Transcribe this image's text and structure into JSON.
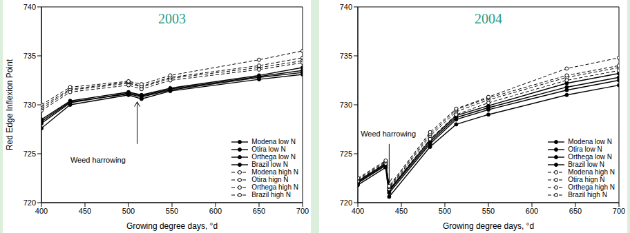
{
  "chart_data": [
    {
      "type": "line",
      "title": "2003",
      "xlabel": "Growing degree days, °d",
      "ylabel": "Red Edge Inflexion Point",
      "x": [
        400,
        433,
        500,
        515,
        548,
        650,
        700
      ],
      "xlim": [
        400,
        700
      ],
      "xticks": [
        400,
        450,
        500,
        550,
        600,
        650,
        700
      ],
      "ylim": [
        720,
        740
      ],
      "yticks": [
        720,
        725,
        730,
        735,
        740
      ],
      "legend": "lower right",
      "series": [
        {
          "name": "Modena low N",
          "color": "#000000",
          "marker": "circle",
          "line_style": "solid",
          "values": [
            728.3,
            730.3,
            731.1,
            730.8,
            731.5,
            732.8,
            733.3
          ]
        },
        {
          "name": "Otira low N",
          "color": "#000000",
          "marker": "circle",
          "line_style": "solid",
          "values": [
            727.6,
            730.0,
            731.0,
            730.6,
            731.4,
            732.6,
            733.1
          ]
        },
        {
          "name": "Orthega low N",
          "color": "#000000",
          "marker": "circle",
          "line_style": "solid",
          "values": [
            728.1,
            730.2,
            731.2,
            730.9,
            731.6,
            732.9,
            733.5
          ]
        },
        {
          "name": "Brazil low N",
          "color": "#000000",
          "marker": "circle",
          "line_style": "solid",
          "values": [
            728.5,
            730.4,
            731.3,
            731.0,
            731.7,
            733.0,
            733.8
          ]
        },
        {
          "name": "Modena high N",
          "color": "#000000",
          "marker": "open_circle",
          "line_style": "dashed",
          "values": [
            729.6,
            731.5,
            732.2,
            731.8,
            732.7,
            733.8,
            734.5
          ]
        },
        {
          "name": "Otira hign N",
          "color": "#000000",
          "marker": "open_circle",
          "line_style": "dashed",
          "values": [
            729.4,
            731.3,
            732.0,
            731.6,
            732.5,
            733.6,
            734.3
          ]
        },
        {
          "name": "Orthega high N",
          "color": "#000000",
          "marker": "open_circle",
          "line_style": "dashed",
          "values": [
            729.8,
            731.6,
            732.3,
            731.9,
            732.8,
            734.0,
            734.8
          ]
        },
        {
          "name": "Brazil high N",
          "color": "#000000",
          "marker": "open_circle",
          "line_style": "dashed",
          "values": [
            730.0,
            731.8,
            732.4,
            732.1,
            733.0,
            734.6,
            735.5
          ]
        }
      ],
      "annotations": [
        {
          "text": "Weed harrowing",
          "x": 510,
          "y": 730.3,
          "tail_y": 726,
          "text_x": 465,
          "text_y": 724.3
        }
      ]
    },
    {
      "type": "line",
      "title": "2004",
      "xlabel": "Growing degree days, °d",
      "x": [
        400,
        432,
        436,
        483,
        513,
        550,
        640,
        700
      ],
      "xlim": [
        400,
        700
      ],
      "xticks": [
        400,
        450,
        500,
        550,
        600,
        650,
        700
      ],
      "ylim": [
        720,
        740
      ],
      "yticks": [
        720,
        725,
        730,
        735,
        740
      ],
      "legend": "lower right",
      "series": [
        {
          "name": "Modena low N",
          "color": "#000000",
          "marker": "circle",
          "line_style": "solid",
          "values": [
            722.0,
            723.8,
            721.0,
            726.0,
            728.5,
            729.5,
            731.5,
            732.5
          ]
        },
        {
          "name": "Otira low N",
          "color": "#000000",
          "marker": "circle",
          "line_style": "solid",
          "values": [
            721.8,
            723.6,
            720.6,
            725.7,
            728.0,
            729.0,
            731.0,
            732.0
          ]
        },
        {
          "name": "Orthega low N",
          "color": "#000000",
          "marker": "circle",
          "line_style": "solid",
          "values": [
            722.1,
            723.9,
            721.2,
            726.2,
            728.7,
            729.7,
            731.8,
            732.8
          ]
        },
        {
          "name": "Brazil low N",
          "color": "#000000",
          "marker": "circle",
          "line_style": "solid",
          "values": [
            722.2,
            724.0,
            721.3,
            726.4,
            728.9,
            729.9,
            732.2,
            733.2
          ]
        },
        {
          "name": "Modena high N",
          "color": "#000000",
          "marker": "open_circle",
          "line_style": "dashed",
          "values": [
            722.3,
            724.1,
            721.5,
            726.8,
            729.3,
            730.5,
            732.8,
            733.8
          ]
        },
        {
          "name": "Otira hign N",
          "color": "#000000",
          "marker": "open_circle",
          "line_style": "dashed",
          "values": [
            722.2,
            724.0,
            721.4,
            726.5,
            729.0,
            730.2,
            732.5,
            733.5
          ]
        },
        {
          "name": "Orthega high N",
          "color": "#000000",
          "marker": "open_circle",
          "line_style": "dashed",
          "values": [
            722.4,
            724.2,
            721.6,
            727.0,
            729.5,
            730.7,
            733.0,
            734.0
          ]
        },
        {
          "name": "Brazil high N",
          "color": "#000000",
          "marker": "open_circle",
          "line_style": "dashed",
          "values": [
            722.5,
            724.3,
            721.7,
            727.2,
            729.6,
            730.8,
            733.7,
            734.8
          ]
        }
      ],
      "annotations": [
        {
          "text": "Weed harrowing",
          "x": 436,
          "y": 722,
          "tail_y": 726,
          "text_x": 435,
          "text_y": 727
        }
      ]
    }
  ]
}
